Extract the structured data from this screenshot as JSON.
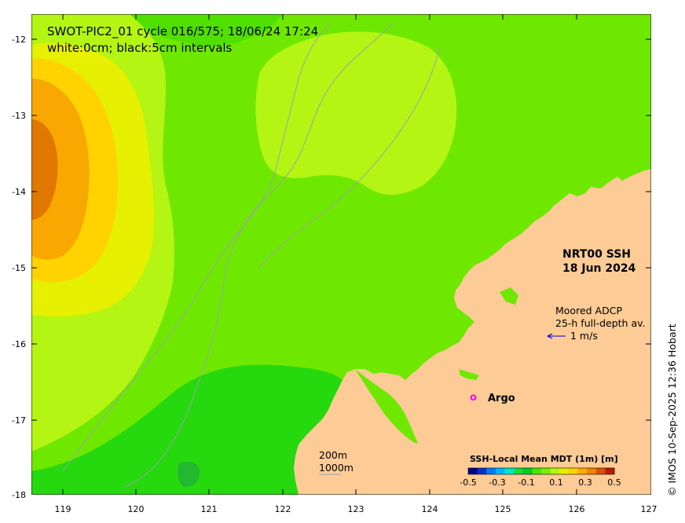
{
  "title_line1": "SWOT-PIC2_01 cycle 016/575; 18/06/24 17:24",
  "title_line2": "white:0cm; black:5cm intervals",
  "product_line1": "NRT00 SSH",
  "product_line2": "18 Jun 2024",
  "adcp_line1": "Moored ADCP",
  "adcp_line2": "25-h full-depth av.",
  "adcp_scale": "1 m/s",
  "argo_symbol": "o",
  "argo_label": "Argo",
  "depth_label_1": "200m",
  "depth_label_2": "1000m",
  "colorbar_title": "SSH-Local Mean MDT (1m) [m]",
  "colorbar_ticks": [
    "-0.5",
    "-0.3",
    "-0.1",
    "0.1",
    "0.3",
    "0.5"
  ],
  "colorbar_colors": [
    "#00008b",
    "#0032c8",
    "#0078ff",
    "#00b4ff",
    "#00e6c8",
    "#14dc3c",
    "#00cd1e",
    "#46e600",
    "#78f000",
    "#b4f514",
    "#e6f000",
    "#ffd200",
    "#ffaa00",
    "#f08200",
    "#dc5000",
    "#b41e00"
  ],
  "credit": "© IMOS 10-Sep-2025 12:36 Hobart",
  "lat_ticks": [
    "-12",
    "-13",
    "-14",
    "-15",
    "-16",
    "-17",
    "-18"
  ],
  "lon_ticks": [
    "119",
    "120",
    "121",
    "122",
    "123",
    "124",
    "125",
    "126",
    "127"
  ],
  "land_color": "#fccb96",
  "map_data": {
    "lon_range": [
      118.6,
      127
    ],
    "lat_range": [
      -18,
      -11.75
    ],
    "lat_ticks": [
      -12,
      -13,
      -14,
      -15,
      -16,
      -17,
      -18
    ],
    "lon_ticks": [
      119,
      120,
      121,
      122,
      123,
      124,
      125,
      126,
      127
    ]
  }
}
